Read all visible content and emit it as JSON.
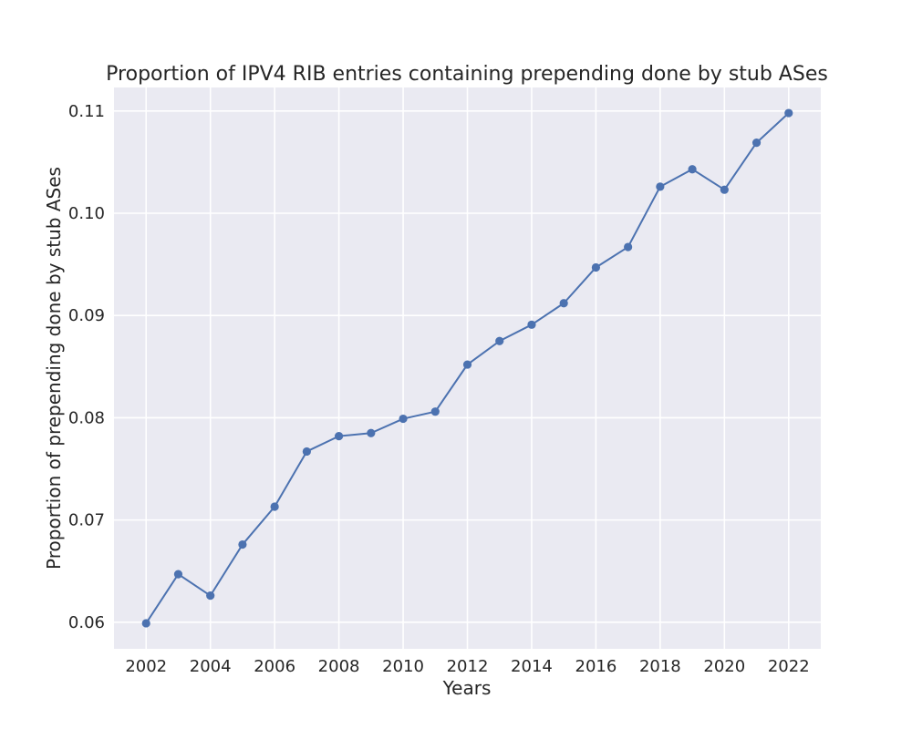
{
  "chart_data": {
    "type": "line",
    "title": "Proportion of IPV4 RIB entries containing prepending done by stub ASes",
    "xlabel": "Years",
    "ylabel": "Proportion of prepending done by stub ASes",
    "x": [
      2002,
      2003,
      2004,
      2005,
      2006,
      2007,
      2008,
      2009,
      2010,
      2011,
      2012,
      2013,
      2014,
      2015,
      2016,
      2017,
      2018,
      2019,
      2020,
      2021,
      2022
    ],
    "series": [
      {
        "values": [
          0.0599,
          0.0647,
          0.0626,
          0.0676,
          0.0713,
          0.0767,
          0.0782,
          0.0785,
          0.0799,
          0.0806,
          0.0852,
          0.0875,
          0.0891,
          0.0912,
          0.0947,
          0.0967,
          0.1026,
          0.1043,
          0.1023,
          0.1069,
          0.1098
        ],
        "color": "#4c72b0",
        "marker": "circle"
      }
    ],
    "xticks": [
      2002,
      2004,
      2006,
      2008,
      2010,
      2012,
      2014,
      2016,
      2018,
      2020,
      2022
    ],
    "xtick_labels": [
      "2002",
      "2004",
      "2006",
      "2008",
      "2010",
      "2012",
      "2014",
      "2016",
      "2018",
      "2020",
      "2022"
    ],
    "yticks": [
      0.06,
      0.07,
      0.08,
      0.09,
      0.1,
      0.11
    ],
    "ytick_labels": [
      "0.06",
      "0.07",
      "0.08",
      "0.09",
      "0.10",
      "0.11"
    ],
    "xlim": [
      2001.0,
      2023.0
    ],
    "ylim": [
      0.0574,
      0.1123
    ],
    "grid": true,
    "background_color": "#eaeaf2",
    "grid_color": "#ffffff",
    "text_color": "#262626"
  }
}
